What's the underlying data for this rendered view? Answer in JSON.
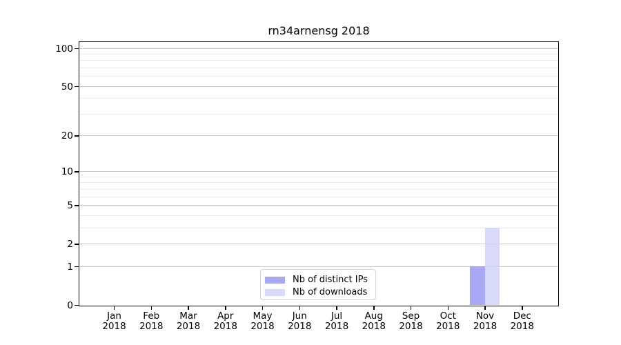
{
  "colors": {
    "background": "#ffffff",
    "spine": "#000000",
    "grid_major": "#c9c9c9",
    "grid_minor": "#ededed",
    "text": "#000000",
    "legend_border": "#d2d2d2"
  },
  "chart_data": {
    "type": "bar",
    "title": "rn34arnensg 2018",
    "categories": [
      "Jan",
      "Feb",
      "Mar",
      "Apr",
      "May",
      "Jun",
      "Jul",
      "Aug",
      "Sep",
      "Oct",
      "Nov",
      "Dec"
    ],
    "year": "2018",
    "series": [
      {
        "key": "distinct-ips",
        "name": "Nb of distinct IPs",
        "color": "#9292f3",
        "values": [
          0,
          0,
          0,
          0,
          0,
          0,
          0,
          0,
          0,
          0,
          1,
          0
        ]
      },
      {
        "key": "downloads",
        "name": "Nb of downloads",
        "color": "#cfcff8",
        "values": [
          0,
          0,
          0,
          0,
          0,
          0,
          0,
          0,
          0,
          0,
          3,
          0
        ]
      }
    ],
    "xlabel": "",
    "ylabel": "",
    "y_scale": "log1p",
    "ylim": [
      0,
      112
    ],
    "y_major_ticks": [
      0,
      1,
      2,
      5,
      10,
      20,
      50,
      100
    ],
    "y_minor_ticks": [
      3,
      4,
      6,
      7,
      8,
      9,
      30,
      40,
      60,
      70,
      80,
      90
    ],
    "grid": "horizontal",
    "legend_position": "bottom-center-inside"
  }
}
